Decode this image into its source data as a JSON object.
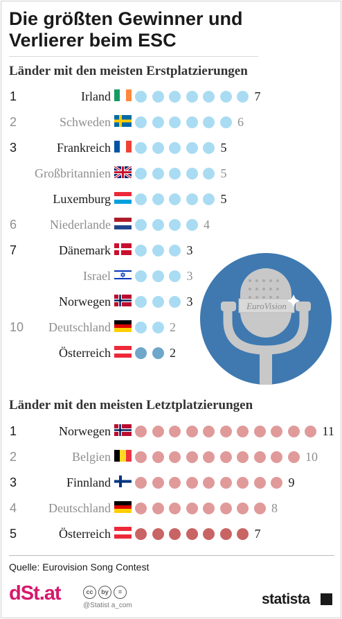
{
  "title": "Die größten Gewinner und Verlierer beim ESC",
  "colors": {
    "winner_dot": "#a9dcf2",
    "winner_dot_highlight": "#6ea7c9",
    "loser_dot": "#e09a9a",
    "loser_dot_highlight": "#c96464",
    "mic_circle": "#3f79b0"
  },
  "chart_data": [
    {
      "type": "table",
      "title": "Länder mit den meisten Erstplatzierungen",
      "rows": [
        {
          "rank": "1",
          "country": "Irland",
          "flag": "IE",
          "value": 7
        },
        {
          "rank": "2",
          "country": "Schweden",
          "flag": "SE",
          "value": 6
        },
        {
          "rank": "3",
          "country": "Frankreich",
          "flag": "FR",
          "value": 5
        },
        {
          "rank": "",
          "country": "Großbritannien",
          "flag": "GB",
          "value": 5
        },
        {
          "rank": "",
          "country": "Luxemburg",
          "flag": "LU",
          "value": 5
        },
        {
          "rank": "6",
          "country": "Niederlande",
          "flag": "NL",
          "value": 4
        },
        {
          "rank": "7",
          "country": "Dänemark",
          "flag": "DK",
          "value": 3
        },
        {
          "rank": "",
          "country": "Israel",
          "flag": "IL",
          "value": 3
        },
        {
          "rank": "",
          "country": "Norwegen",
          "flag": "NO",
          "value": 3
        },
        {
          "rank": "10",
          "country": "Deutschland",
          "flag": "DE",
          "value": 2
        },
        {
          "rank": "",
          "country": "Österreich",
          "flag": "AT",
          "value": 2,
          "highlight": true
        }
      ]
    },
    {
      "type": "table",
      "title": "Länder mit den meisten Letztplatzierungen",
      "rows": [
        {
          "rank": "1",
          "country": "Norwegen",
          "flag": "NO",
          "value": 11
        },
        {
          "rank": "2",
          "country": "Belgien",
          "flag": "BE",
          "value": 10
        },
        {
          "rank": "3",
          "country": "Finnland",
          "flag": "FI",
          "value": 9
        },
        {
          "rank": "4",
          "country": "Deutschland",
          "flag": "DE",
          "value": 8
        },
        {
          "rank": "5",
          "country": "Österreich",
          "flag": "AT",
          "value": 7,
          "highlight": true
        }
      ]
    }
  ],
  "mic_label": "EuroVision",
  "source": "Quelle: Eurovision Song Contest",
  "logo_left": "dSt.at",
  "license_icons": [
    "cc",
    "by",
    "="
  ],
  "handle": "@Statist a_com",
  "logo_right": "statista"
}
